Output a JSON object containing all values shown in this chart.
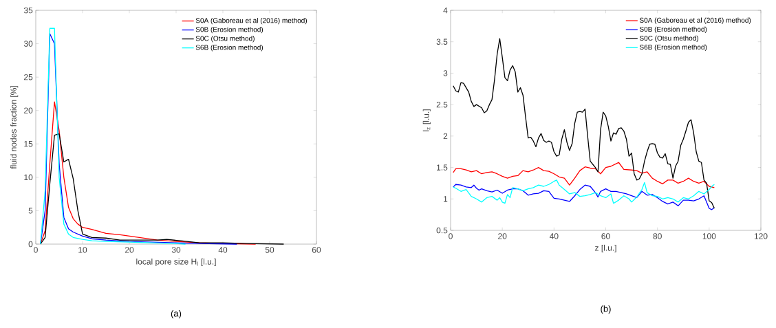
{
  "chart_data": [
    {
      "type": "line",
      "xlabel": "local pore size H$_{l}$ [l.u.]",
      "ylabel": "fluid nodes fraction [%]",
      "annotations": [
        "(a)"
      ],
      "xlim": [
        0,
        60
      ],
      "ylim": [
        0,
        35
      ],
      "xticks": [
        0,
        10,
        20,
        30,
        40,
        50,
        60
      ],
      "yticks": [
        0,
        5,
        10,
        15,
        20,
        25,
        30,
        35
      ],
      "grid": false,
      "legend": "top right",
      "marker": "none",
      "line_style": "solid",
      "series": [
        {
          "name": "S0A (Gaboreau et al (2016) method)",
          "color": "#ff0000",
          "x": [
            1,
            2,
            3,
            4,
            5,
            6,
            7,
            8,
            9,
            10,
            12,
            15,
            18,
            22,
            26,
            30,
            35,
            40,
            47
          ],
          "values": [
            0,
            2,
            12,
            21.3,
            17,
            10,
            5.5,
            3.8,
            3,
            2.5,
            2.2,
            1.6,
            1.4,
            1,
            0.6,
            0.4,
            0.2,
            0.1,
            0
          ]
        },
        {
          "name": "S0B (Erosion method)",
          "color": "#0000ff",
          "x": [
            1,
            2,
            3,
            4,
            5,
            6,
            7,
            8,
            10,
            12,
            15,
            20,
            30,
            35,
            43
          ],
          "values": [
            0,
            5,
            31.5,
            30,
            12,
            4,
            2.3,
            1.8,
            1.2,
            0.8,
            0.6,
            0.4,
            0.2,
            0.1,
            0
          ]
        },
        {
          "name": "S0C (Otsu method)",
          "color": "#000000",
          "x": [
            1,
            2,
            3,
            4,
            5,
            6,
            7,
            8,
            9,
            10,
            12,
            15,
            18,
            22,
            26,
            28,
            31,
            35,
            40,
            45,
            53
          ],
          "values": [
            0,
            1,
            9,
            16.3,
            16.5,
            12.3,
            12.7,
            9.8,
            5,
            1.5,
            1,
            0.9,
            0.6,
            0.6,
            0.6,
            0.7,
            0.5,
            0.2,
            0.2,
            0.1,
            0
          ]
        },
        {
          "name": "S6B (Erosion method)",
          "color": "#00ffff",
          "x": [
            1,
            2,
            3,
            4,
            5,
            6,
            7,
            8,
            10,
            12,
            15,
            20,
            25,
            30,
            32
          ],
          "values": [
            0,
            8,
            32.3,
            32.3,
            10,
            3,
            1.5,
            1,
            0.7,
            0.5,
            0.4,
            0.3,
            0.2,
            0.1,
            0
          ]
        }
      ]
    },
    {
      "type": "line",
      "xlabel": "z [l.u.]",
      "ylabel": "l$_{z}$ [l.u.]",
      "annotations": [
        "(b)"
      ],
      "xlim": [
        0,
        120
      ],
      "ylim": [
        0.5,
        4
      ],
      "xticks": [
        0,
        20,
        40,
        60,
        80,
        100,
        120
      ],
      "yticks": [
        0.5,
        1,
        1.5,
        2,
        2.5,
        3,
        3.5,
        4
      ],
      "grid": false,
      "legend": "top right",
      "marker": "none",
      "line_style": "solid",
      "series": [
        {
          "name": "S0A (Gaboreau et al (2016) method)",
          "color": "#ff0000",
          "x": [
            1,
            2,
            4,
            6,
            8,
            10,
            12,
            14,
            16,
            18,
            20,
            22,
            24,
            26,
            28,
            30,
            32,
            34,
            36,
            38,
            40,
            42,
            44,
            46,
            48,
            50,
            52,
            54,
            56,
            58,
            60,
            62,
            64,
            65,
            67,
            70,
            72,
            74,
            76,
            78,
            80,
            82,
            84,
            86,
            88,
            90,
            92,
            94,
            96,
            98,
            100,
            102
          ],
          "values": [
            1.42,
            1.48,
            1.48,
            1.46,
            1.43,
            1.45,
            1.4,
            1.42,
            1.43,
            1.4,
            1.36,
            1.33,
            1.36,
            1.37,
            1.45,
            1.43,
            1.46,
            1.5,
            1.45,
            1.44,
            1.4,
            1.35,
            1.33,
            1.22,
            1.33,
            1.45,
            1.51,
            1.49,
            1.48,
            1.4,
            1.5,
            1.52,
            1.56,
            1.58,
            1.47,
            1.46,
            1.45,
            1.41,
            1.43,
            1.33,
            1.28,
            1.24,
            1.3,
            1.3,
            1.25,
            1.28,
            1.33,
            1.28,
            1.25,
            1.28,
            1.2,
            1.18
          ]
        },
        {
          "name": "S0B (Erosion method)",
          "color": "#0000ff",
          "x": [
            1,
            2,
            4,
            6,
            8,
            9,
            10,
            11,
            12,
            14,
            16,
            18,
            20,
            22,
            24,
            26,
            28,
            30,
            32,
            34,
            36,
            38,
            40,
            42,
            44,
            46,
            48,
            50,
            52,
            54,
            56,
            57,
            58,
            60,
            62,
            64,
            66,
            68,
            70,
            72,
            74,
            76,
            78,
            80,
            82,
            84,
            86,
            88,
            90,
            92,
            94,
            96,
            98,
            100,
            101,
            102
          ],
          "values": [
            1.19,
            1.23,
            1.22,
            1.19,
            1.18,
            1.22,
            1.17,
            1.14,
            1.16,
            1.13,
            1.11,
            1.14,
            1.09,
            1.14,
            1.16,
            1.16,
            1.13,
            1.06,
            1.08,
            1.09,
            1.13,
            1.12,
            1.01,
            1.0,
            0.98,
            0.96,
            1.05,
            1.15,
            1.22,
            1.2,
            1.1,
            1.03,
            1.12,
            1.16,
            1.12,
            1.12,
            1.1,
            1.08,
            1.05,
            1.02,
            1.12,
            1.06,
            1.07,
            1.02,
            0.96,
            0.92,
            0.95,
            0.89,
            0.98,
            0.98,
            0.97,
            1.0,
            1.05,
            0.85,
            0.83,
            0.86
          ]
        },
        {
          "name": "S0C (Otsu method)",
          "color": "#000000",
          "x": [
            1,
            2,
            3,
            4,
            5,
            7,
            8,
            9,
            10,
            12,
            13,
            14,
            15,
            16,
            17,
            18,
            19,
            20,
            21,
            22,
            23,
            24,
            25,
            26,
            27,
            28,
            29,
            30,
            31,
            32,
            33,
            34,
            35,
            36,
            37,
            38,
            39,
            40,
            41,
            42,
            43,
            44,
            45,
            46,
            47,
            48,
            49,
            50,
            51,
            52,
            53,
            54,
            55,
            56,
            57,
            58,
            59,
            60,
            61,
            62,
            63,
            64,
            65,
            66,
            67,
            68,
            69,
            70,
            71,
            72,
            73,
            74,
            75,
            76,
            77,
            78,
            79,
            80,
            81,
            82,
            83,
            84,
            85,
            86,
            87,
            88,
            89,
            90,
            91,
            92,
            93,
            94,
            95,
            96,
            97,
            98,
            99,
            100,
            101,
            102
          ],
          "values": [
            2.8,
            2.72,
            2.7,
            2.85,
            2.84,
            2.7,
            2.55,
            2.47,
            2.5,
            2.45,
            2.37,
            2.4,
            2.5,
            2.58,
            2.9,
            3.3,
            3.55,
            3.25,
            2.93,
            2.88,
            3.05,
            3.12,
            3.02,
            2.7,
            2.77,
            2.65,
            2.3,
            1.97,
            1.98,
            1.92,
            1.83,
            1.97,
            2.04,
            1.93,
            1.9,
            1.92,
            1.9,
            1.75,
            1.68,
            1.7,
            1.95,
            2.1,
            1.9,
            1.77,
            1.88,
            2.2,
            2.38,
            2.39,
            2.38,
            2.43,
            2.0,
            1.6,
            1.55,
            1.5,
            1.43,
            2.1,
            2.38,
            2.32,
            2.15,
            1.92,
            2.05,
            2.03,
            2.12,
            2.13,
            2.08,
            1.95,
            1.68,
            1.73,
            1.4,
            1.3,
            1.32,
            1.4,
            1.6,
            1.75,
            1.87,
            1.88,
            1.87,
            1.73,
            1.66,
            1.65,
            1.72,
            1.56,
            1.55,
            1.33,
            1.52,
            1.6,
            1.85,
            1.95,
            2.08,
            2.22,
            2.26,
            2.05,
            1.75,
            1.6,
            1.58,
            1.3,
            1.25,
            0.97,
            0.94,
            0.85
          ]
        },
        {
          "name": "S6B (Erosion method)",
          "color": "#00ffff",
          "x": [
            1,
            2,
            4,
            6,
            8,
            10,
            12,
            14,
            16,
            18,
            19,
            20,
            21,
            22,
            23,
            24,
            26,
            28,
            30,
            32,
            34,
            36,
            38,
            40,
            41,
            42,
            44,
            46,
            48,
            50,
            52,
            54,
            56,
            58,
            60,
            62,
            63,
            65,
            67,
            69,
            70,
            72,
            74,
            75,
            76,
            78,
            80,
            82,
            84,
            86,
            88,
            90,
            92,
            94,
            96,
            98,
            100,
            101,
            102
          ],
          "values": [
            1.19,
            1.17,
            1.12,
            1.15,
            1.04,
            1.0,
            0.95,
            1.02,
            1.04,
            0.98,
            1.02,
            0.95,
            0.93,
            1.07,
            1.02,
            1.18,
            1.16,
            1.13,
            1.16,
            1.18,
            1.22,
            1.2,
            1.23,
            1.28,
            1.3,
            1.22,
            1.15,
            1.08,
            1.1,
            1.04,
            1.05,
            1.07,
            1.1,
            1.05,
            1.02,
            1.08,
            0.93,
            0.98,
            1.05,
            1.0,
            0.95,
            1.03,
            1.15,
            1.26,
            1.1,
            1.05,
            1.04,
            1.0,
            1.02,
            1.0,
            0.95,
            1.02,
            1.0,
            1.05,
            1.12,
            1.08,
            1.15,
            1.2,
            1.23
          ]
        }
      ]
    }
  ]
}
